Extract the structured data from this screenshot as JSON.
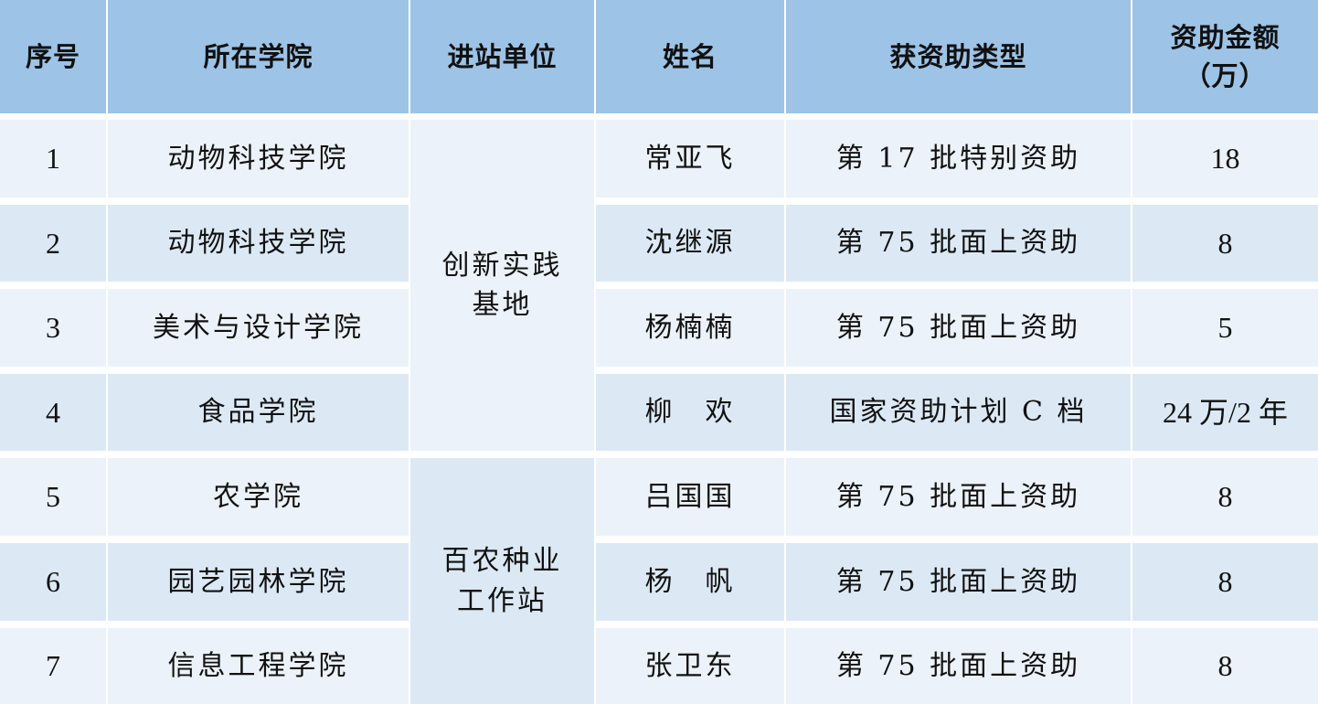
{
  "headers": [
    "序号",
    "所在学院",
    "进站单位",
    "姓名",
    "获资助类型",
    "资助金额\n（万）"
  ],
  "rows": [
    {
      "no": "1",
      "college": "动物科技学院",
      "name": "常亚飞",
      "type": "第 17 批特别资助",
      "amount": "18"
    },
    {
      "no": "2",
      "college": "动物科技学院",
      "name": "沈继源",
      "type": "第 75 批面上资助",
      "amount": "8"
    },
    {
      "no": "3",
      "college": "美术与设计学院",
      "name": "杨楠楠",
      "type": "第 75 批面上资助",
      "amount": "5"
    },
    {
      "no": "4",
      "college": "食品学院",
      "name": "柳　欢",
      "type": "国家资助计划 C 档",
      "amount": "24 万/2 年"
    },
    {
      "no": "5",
      "college": "农学院",
      "name": "吕国国",
      "type": "第 75 批面上资助",
      "amount": "8"
    },
    {
      "no": "6",
      "college": "园艺园林学院",
      "name": "杨　帆",
      "type": "第 75 批面上资助",
      "amount": "8"
    },
    {
      "no": "7",
      "college": "信息工程学院",
      "name": "张卫东",
      "type": "第 75 批面上资助",
      "amount": "8"
    }
  ],
  "units": [
    "创新实践\n基地",
    "百农种业\n工作站"
  ]
}
